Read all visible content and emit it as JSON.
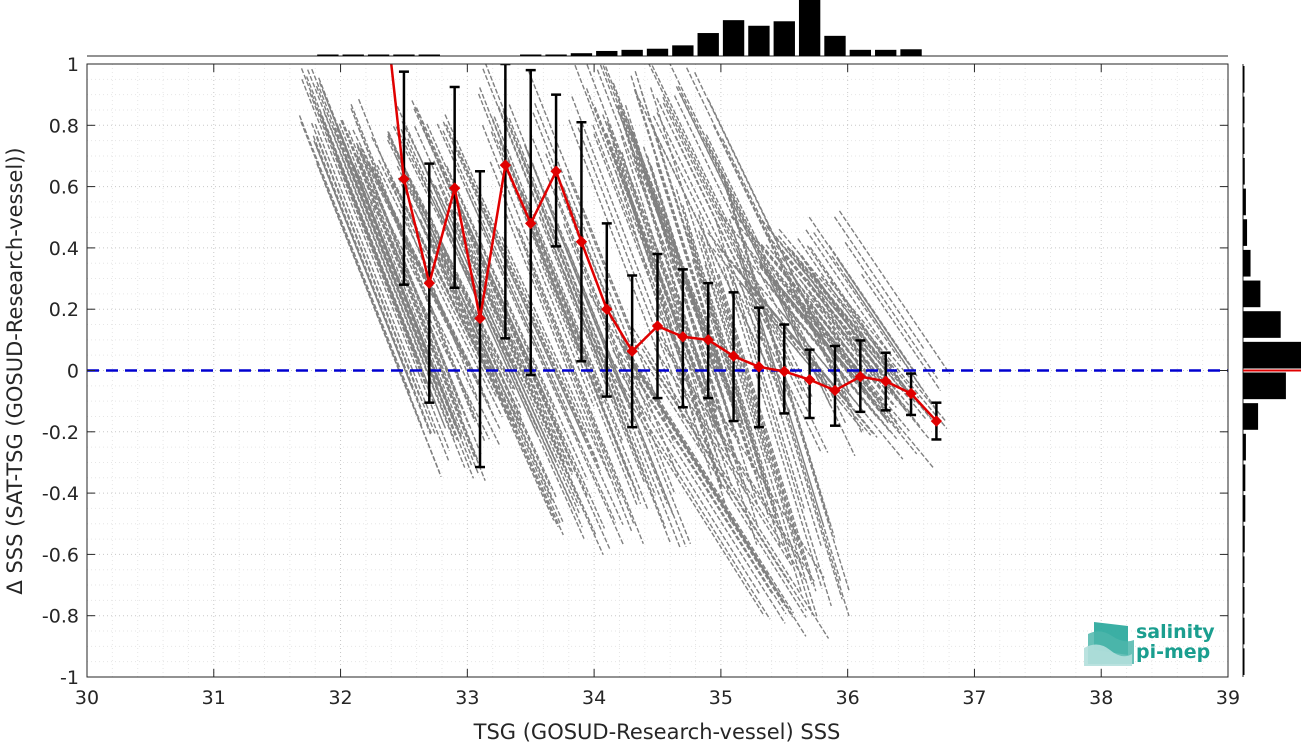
{
  "chart_data": {
    "type": "scatter",
    "title": "",
    "xlabel": "TSG (GOSUD-Research-vessel) SSS",
    "ylabel": "Δ SSS (SAT-TSG (GOSUD-Research-vessel))",
    "xlim": [
      30,
      39
    ],
    "ylim": [
      -1,
      1
    ],
    "x_ticks": [
      "30",
      "31",
      "32",
      "33",
      "34",
      "35",
      "36",
      "37",
      "38",
      "39"
    ],
    "y_ticks": [
      "-1",
      "-0.8",
      "-0.6",
      "-0.4",
      "-0.2",
      "0",
      "0.2",
      "0.4",
      "0.6",
      "0.8",
      "1"
    ],
    "grid": true,
    "zero_line": {
      "y": 0,
      "color": "#0000d0",
      "style": "dashed"
    },
    "scatter_color": "#808080",
    "scatter_streaks": [
      {
        "x1": 31.75,
        "y1": 1.0,
        "x2": 32.95,
        "y2": -0.25
      },
      {
        "x1": 31.95,
        "y1": 0.85,
        "x2": 33.1,
        "y2": -0.35
      },
      {
        "x1": 32.2,
        "y1": 0.8,
        "x2": 33.4,
        "y2": -0.2
      },
      {
        "x1": 32.5,
        "y1": 0.9,
        "x2": 33.9,
        "y2": -0.4
      },
      {
        "x1": 32.8,
        "y1": 0.6,
        "x2": 34.1,
        "y2": -0.6
      },
      {
        "x1": 33.2,
        "y1": 0.95,
        "x2": 34.3,
        "y2": -0.2
      },
      {
        "x1": 33.5,
        "y1": 0.6,
        "x2": 34.6,
        "y2": -0.55
      },
      {
        "x1": 33.9,
        "y1": 1.0,
        "x2": 35.1,
        "y2": -0.3
      },
      {
        "x1": 34.2,
        "y1": 0.9,
        "x2": 35.3,
        "y2": -0.55
      },
      {
        "x1": 34.5,
        "y1": 1.0,
        "x2": 35.9,
        "y2": -0.2
      },
      {
        "x1": 34.8,
        "y1": 0.6,
        "x2": 35.8,
        "y2": -0.75
      },
      {
        "x1": 35.1,
        "y1": 0.5,
        "x2": 36.4,
        "y2": -0.15
      },
      {
        "x1": 35.4,
        "y1": 0.35,
        "x2": 36.6,
        "y2": -0.25
      },
      {
        "x1": 35.7,
        "y1": 0.45,
        "x2": 36.6,
        "y2": -0.1
      },
      {
        "x1": 34.1,
        "y1": 0.2,
        "x2": 35.7,
        "y2": -0.85
      }
    ],
    "mean_series": {
      "color": "#e00000",
      "x": [
        32.5,
        32.7,
        32.9,
        33.1,
        33.3,
        33.5,
        33.7,
        33.9,
        34.1,
        34.3,
        34.5,
        34.7,
        34.9,
        35.1,
        35.3,
        35.5,
        35.7,
        35.9,
        36.1,
        36.3,
        36.5,
        36.7
      ],
      "y": [
        0.625,
        0.285,
        0.595,
        0.17,
        0.67,
        0.48,
        0.65,
        0.42,
        0.2,
        0.063,
        0.145,
        0.11,
        0.1,
        0.047,
        0.012,
        -0.003,
        -0.03,
        -0.065,
        -0.02,
        -0.035,
        -0.075,
        -0.165
      ],
      "err_low": [
        0.28,
        -0.105,
        0.27,
        -0.315,
        0.105,
        -0.015,
        0.405,
        0.03,
        -0.085,
        -0.185,
        -0.09,
        -0.12,
        -0.09,
        -0.165,
        -0.185,
        -0.14,
        -0.155,
        -0.18,
        -0.135,
        -0.13,
        -0.145,
        -0.225
      ],
      "err_high": [
        0.975,
        0.675,
        0.925,
        0.65,
        1.0,
        0.98,
        0.9,
        0.81,
        0.48,
        0.31,
        0.38,
        0.33,
        0.285,
        0.255,
        0.205,
        0.15,
        0.068,
        0.08,
        0.098,
        0.058,
        -0.01,
        -0.105
      ],
      "lead_in": {
        "x": [
          32.4,
          32.5
        ],
        "y": [
          1.0,
          0.625
        ]
      }
    },
    "top_histogram": {
      "bin_width": 0.2,
      "x": [
        31.9,
        32.1,
        32.3,
        32.5,
        32.7,
        32.9,
        33.1,
        33.3,
        33.5,
        33.7,
        33.9,
        34.1,
        34.3,
        34.5,
        34.7,
        34.9,
        35.1,
        35.3,
        35.5,
        35.7,
        35.9,
        36.1,
        36.3,
        36.5
      ],
      "counts": [
        0.02,
        0.02,
        0.02,
        0.02,
        0.01,
        0.0,
        0.0,
        0.0,
        0.01,
        0.02,
        0.05,
        0.09,
        0.11,
        0.13,
        0.19,
        0.41,
        0.64,
        0.54,
        0.62,
        1.0,
        0.36,
        0.11,
        0.11,
        0.12
      ]
    },
    "right_histogram": {
      "bin_width": 0.1,
      "y": [
        -0.95,
        -0.85,
        -0.75,
        -0.65,
        -0.55,
        -0.45,
        -0.35,
        -0.25,
        -0.15,
        -0.05,
        0.05,
        0.15,
        0.25,
        0.35,
        0.45,
        0.55,
        0.65,
        0.75,
        0.85,
        0.95
      ],
      "counts": [
        0.01,
        0.01,
        0.01,
        0.02,
        0.03,
        0.04,
        0.04,
        0.05,
        0.26,
        0.74,
        1.0,
        0.65,
        0.3,
        0.13,
        0.07,
        0.05,
        0.03,
        0.02,
        0.02,
        0.01
      ],
      "marker_y": 0.0,
      "marker_color": "#e00000"
    }
  },
  "logo": {
    "line1": "salinity",
    "line2": "pi-mep",
    "color": "#1a9e8f"
  }
}
